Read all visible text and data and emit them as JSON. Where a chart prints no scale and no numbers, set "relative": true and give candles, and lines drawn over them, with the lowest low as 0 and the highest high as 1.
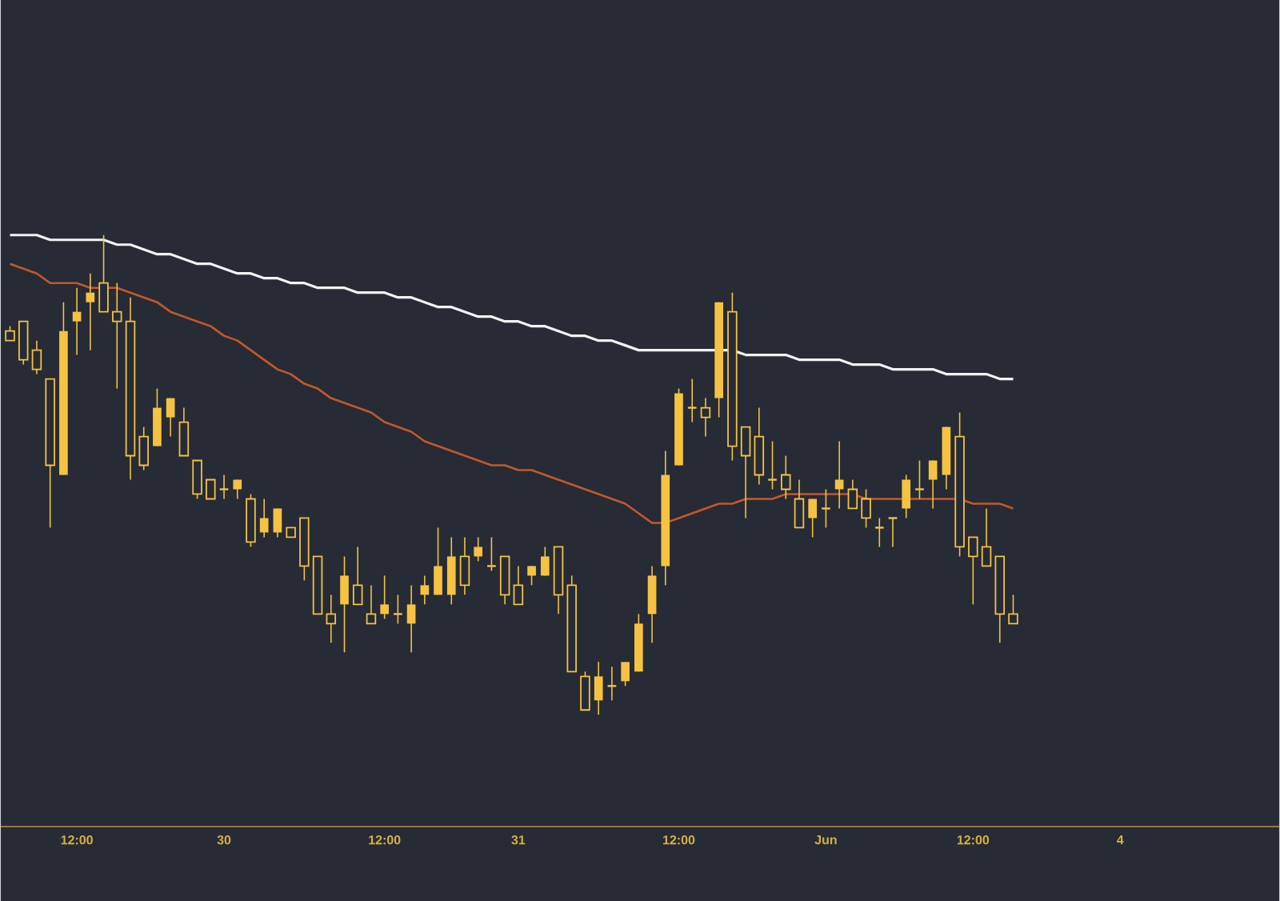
{
  "chart_data": {
    "type": "candlestick",
    "relative": true,
    "color": "#f5c242",
    "categories": [
      null,
      null,
      null,
      null,
      null,
      "12:00",
      null,
      null,
      null,
      null,
      null,
      null,
      null,
      null,
      null,
      null,
      "30",
      null,
      null,
      null,
      null,
      null,
      null,
      null,
      null,
      null,
      null,
      null,
      "12:00",
      null,
      null,
      null,
      null,
      null,
      null,
      null,
      null,
      null,
      "31",
      null,
      null,
      null,
      null,
      null,
      null,
      null,
      null,
      null,
      null,
      null,
      "12:00",
      null,
      null,
      null,
      null,
      null,
      null,
      null,
      null,
      null,
      null,
      "Jun",
      null,
      null,
      null,
      null,
      null,
      null,
      null,
      null,
      null,
      null,
      "12:00",
      null,
      null,
      null,
      null,
      null,
      null,
      null,
      null,
      null,
      null,
      "4"
    ],
    "ohlc": [
      [
        0.8,
        0.81,
        0.78,
        0.78
      ],
      [
        0.82,
        0.82,
        0.73,
        0.74
      ],
      [
        0.76,
        0.78,
        0.71,
        0.72
      ],
      [
        0.7,
        0.7,
        0.39,
        0.52
      ],
      [
        0.5,
        0.86,
        0.5,
        0.8
      ],
      [
        0.82,
        0.89,
        0.75,
        0.84
      ],
      [
        0.86,
        0.92,
        0.76,
        0.88
      ],
      [
        0.9,
        1.0,
        0.84,
        0.84
      ],
      [
        0.84,
        0.9,
        0.68,
        0.82
      ],
      [
        0.82,
        0.87,
        0.49,
        0.54
      ],
      [
        0.58,
        0.6,
        0.51,
        0.52
      ],
      [
        0.56,
        0.68,
        0.56,
        0.64
      ],
      [
        0.62,
        0.66,
        0.58,
        0.66
      ],
      [
        0.61,
        0.64,
        0.54,
        0.54
      ],
      [
        0.53,
        0.53,
        0.45,
        0.46
      ],
      [
        0.49,
        0.49,
        0.45,
        0.45
      ],
      [
        0.47,
        0.5,
        0.45,
        0.47
      ],
      [
        0.47,
        0.49,
        0.45,
        0.49
      ],
      [
        0.45,
        0.46,
        0.35,
        0.36
      ],
      [
        0.38,
        0.45,
        0.37,
        0.41
      ],
      [
        0.38,
        0.43,
        0.37,
        0.43
      ],
      [
        0.39,
        0.39,
        0.37,
        0.37
      ],
      [
        0.41,
        0.41,
        0.28,
        0.31
      ],
      [
        0.33,
        0.33,
        0.21,
        0.21
      ],
      [
        0.21,
        0.25,
        0.15,
        0.19
      ],
      [
        0.23,
        0.33,
        0.13,
        0.29
      ],
      [
        0.27,
        0.35,
        0.23,
        0.23
      ],
      [
        0.21,
        0.27,
        0.19,
        0.19
      ],
      [
        0.21,
        0.29,
        0.2,
        0.23
      ],
      [
        0.21,
        0.25,
        0.19,
        0.21
      ],
      [
        0.19,
        0.27,
        0.13,
        0.23
      ],
      [
        0.25,
        0.29,
        0.23,
        0.27
      ],
      [
        0.25,
        0.39,
        0.25,
        0.31
      ],
      [
        0.25,
        0.37,
        0.23,
        0.33
      ],
      [
        0.33,
        0.37,
        0.25,
        0.27
      ],
      [
        0.33,
        0.37,
        0.32,
        0.35
      ],
      [
        0.31,
        0.37,
        0.3,
        0.31
      ],
      [
        0.33,
        0.33,
        0.23,
        0.25
      ],
      [
        0.27,
        0.31,
        0.23,
        0.23
      ],
      [
        0.29,
        0.31,
        0.27,
        0.31
      ],
      [
        0.29,
        0.35,
        0.29,
        0.33
      ],
      [
        0.35,
        0.35,
        0.21,
        0.25
      ],
      [
        0.27,
        0.29,
        0.09,
        0.09
      ],
      [
        0.08,
        0.09,
        0.01,
        0.01
      ],
      [
        0.03,
        0.11,
        0.0,
        0.08
      ],
      [
        0.06,
        0.1,
        0.03,
        0.06
      ],
      [
        0.07,
        0.11,
        0.06,
        0.11
      ],
      [
        0.09,
        0.21,
        0.09,
        0.19
      ],
      [
        0.21,
        0.31,
        0.15,
        0.29
      ],
      [
        0.31,
        0.55,
        0.27,
        0.5
      ],
      [
        0.52,
        0.68,
        0.52,
        0.67
      ],
      [
        0.64,
        0.7,
        0.61,
        0.64
      ],
      [
        0.64,
        0.66,
        0.58,
        0.62
      ],
      [
        0.66,
        0.86,
        0.62,
        0.86
      ],
      [
        0.84,
        0.88,
        0.53,
        0.56
      ],
      [
        0.6,
        0.6,
        0.41,
        0.54
      ],
      [
        0.58,
        0.64,
        0.48,
        0.5
      ],
      [
        0.49,
        0.57,
        0.47,
        0.49
      ],
      [
        0.5,
        0.54,
        0.45,
        0.47
      ],
      [
        0.45,
        0.49,
        0.39,
        0.39
      ],
      [
        0.41,
        0.45,
        0.37,
        0.45
      ],
      [
        0.43,
        0.47,
        0.39,
        0.43
      ],
      [
        0.47,
        0.57,
        0.43,
        0.49
      ],
      [
        0.47,
        0.49,
        0.43,
        0.43
      ],
      [
        0.45,
        0.47,
        0.39,
        0.41
      ],
      [
        0.39,
        0.41,
        0.35,
        0.39
      ],
      [
        0.41,
        0.41,
        0.35,
        0.41
      ],
      [
        0.43,
        0.5,
        0.41,
        0.49
      ],
      [
        0.47,
        0.53,
        0.45,
        0.47
      ],
      [
        0.49,
        0.53,
        0.43,
        0.53
      ],
      [
        0.5,
        0.6,
        0.47,
        0.6
      ],
      [
        0.58,
        0.63,
        0.33,
        0.35
      ],
      [
        0.37,
        0.37,
        0.23,
        0.33
      ],
      [
        0.35,
        0.43,
        0.31,
        0.31
      ],
      [
        0.33,
        0.33,
        0.15,
        0.21
      ],
      [
        0.21,
        0.25,
        0.19,
        0.19
      ],
      null,
      null,
      null,
      null,
      null,
      null,
      null,
      null
    ],
    "series": [
      {
        "type": "line",
        "color": "#f2f2f2",
        "values": [
          1.0,
          1.0,
          1.0,
          0.99,
          0.99,
          0.99,
          0.99,
          0.99,
          0.98,
          0.98,
          0.97,
          0.96,
          0.96,
          0.95,
          0.94,
          0.94,
          0.93,
          0.92,
          0.92,
          0.91,
          0.91,
          0.9,
          0.9,
          0.89,
          0.89,
          0.89,
          0.88,
          0.88,
          0.88,
          0.87,
          0.87,
          0.86,
          0.85,
          0.85,
          0.84,
          0.83,
          0.83,
          0.82,
          0.82,
          0.81,
          0.81,
          0.8,
          0.79,
          0.79,
          0.78,
          0.78,
          0.77,
          0.76,
          0.76,
          0.76,
          0.76,
          0.76,
          0.76,
          0.76,
          0.76,
          0.75,
          0.75,
          0.75,
          0.75,
          0.74,
          0.74,
          0.74,
          0.74,
          0.73,
          0.73,
          0.73,
          0.72,
          0.72,
          0.72,
          0.72,
          0.71,
          0.71,
          0.71,
          0.71,
          0.7,
          0.7,
          null,
          null,
          null,
          null,
          null,
          null,
          null,
          null
        ]
      },
      {
        "type": "line",
        "color": "#c4582a",
        "values": [
          0.94,
          0.93,
          0.92,
          0.9,
          0.9,
          0.9,
          0.89,
          0.89,
          0.89,
          0.88,
          0.87,
          0.86,
          0.84,
          0.83,
          0.82,
          0.81,
          0.79,
          0.78,
          0.76,
          0.74,
          0.72,
          0.71,
          0.69,
          0.68,
          0.66,
          0.65,
          0.64,
          0.63,
          0.61,
          0.6,
          0.59,
          0.57,
          0.56,
          0.55,
          0.54,
          0.53,
          0.52,
          0.52,
          0.51,
          0.51,
          0.5,
          0.49,
          0.48,
          0.47,
          0.46,
          0.45,
          0.44,
          0.42,
          0.4,
          0.4,
          0.41,
          0.42,
          0.43,
          0.44,
          0.44,
          0.45,
          0.45,
          0.45,
          0.46,
          0.46,
          0.46,
          0.46,
          0.46,
          0.46,
          0.45,
          0.45,
          0.45,
          0.45,
          0.45,
          0.45,
          0.45,
          0.45,
          0.44,
          0.44,
          0.44,
          0.43,
          null,
          null,
          null,
          null,
          null,
          null,
          null,
          null
        ]
      }
    ]
  }
}
